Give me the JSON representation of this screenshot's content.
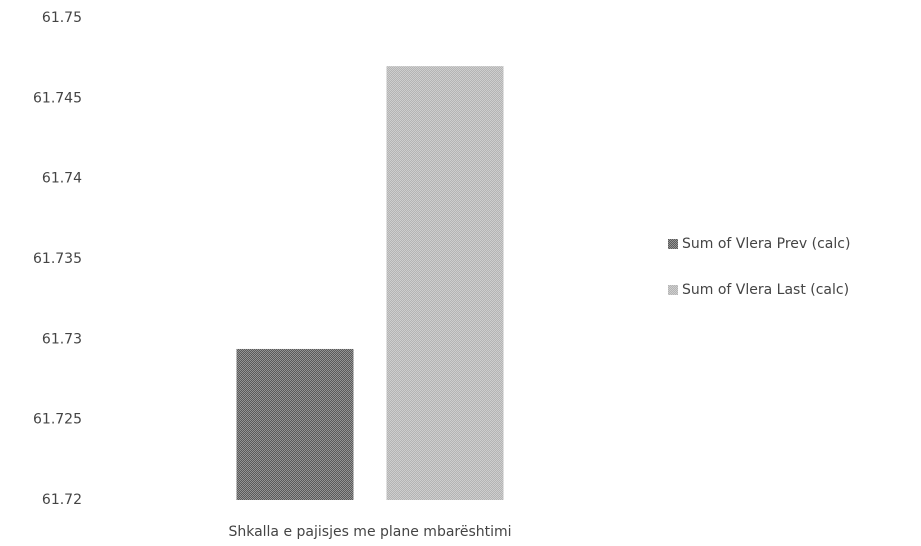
{
  "chart_data": {
    "type": "bar",
    "categories": [
      "Shkalla e pajisjes me plane mbarështimi"
    ],
    "series": [
      {
        "name": "Sum of Vlera Prev (calc)",
        "color": "#5a5a5a",
        "values": [
          61.7294
        ]
      },
      {
        "name": "Sum of Vlera Last (calc)",
        "color": "#b4b4b4",
        "values": [
          61.747
        ]
      }
    ],
    "ylim": [
      61.72,
      61.75
    ],
    "yticks": [
      61.72,
      61.725,
      61.73,
      61.735,
      61.74,
      61.745,
      61.75
    ],
    "grid": false,
    "legend": "right"
  }
}
